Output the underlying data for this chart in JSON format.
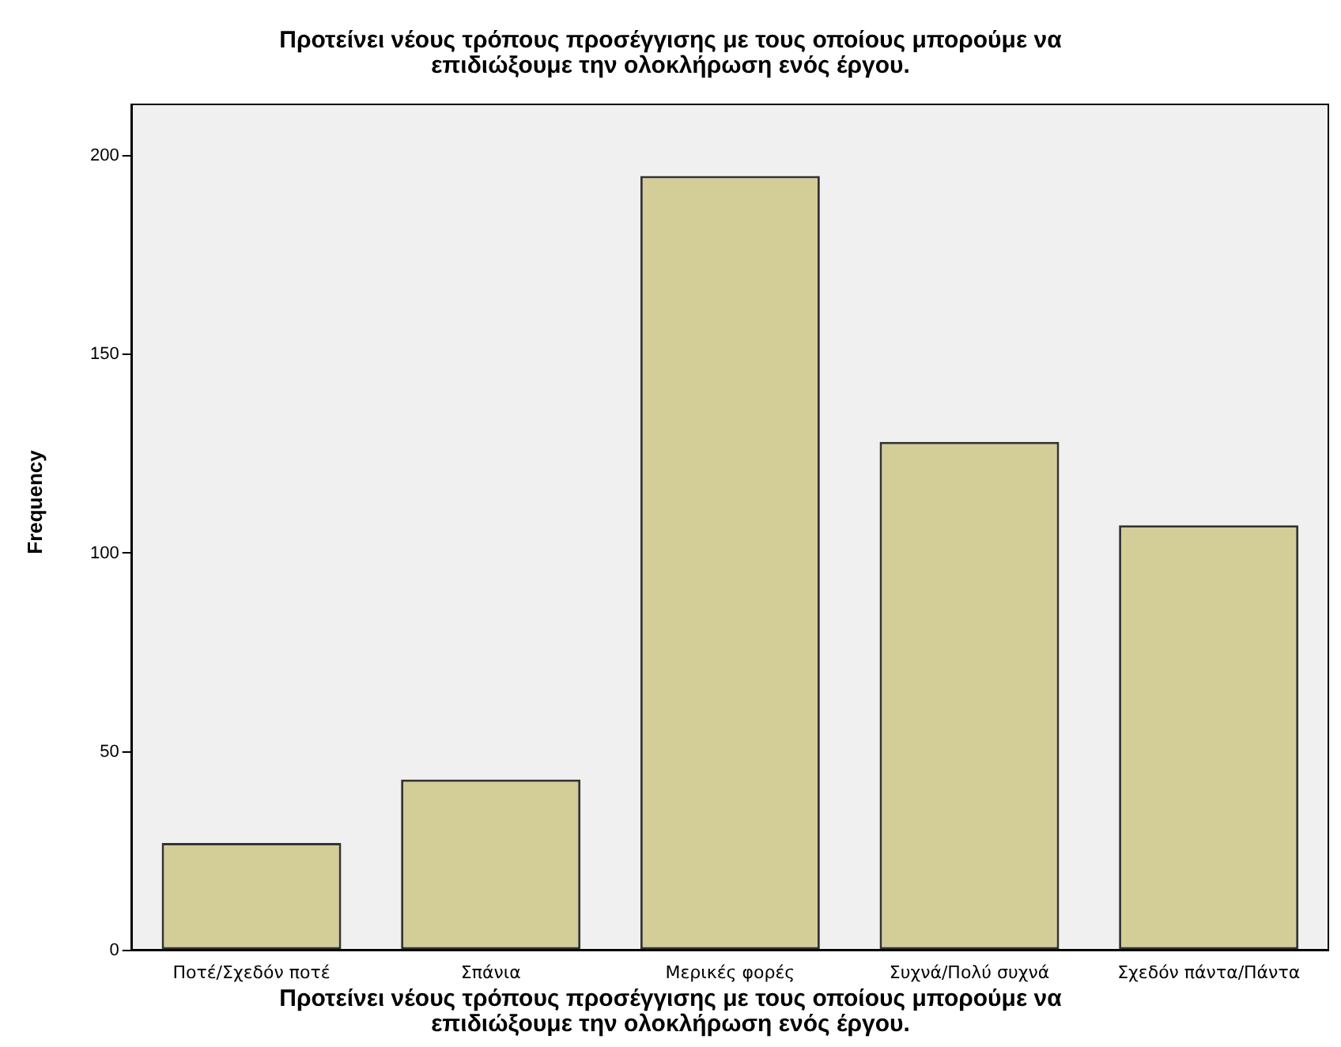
{
  "chart_data": {
    "type": "bar",
    "title": "Προτείνει νέους τρόπους προσέγγισης με τους οποίους μπορούμε να επιδιώξουμε την ολοκλήρωση ενός έργου.",
    "xlabel": "Προτείνει νέους τρόπους προσέγγισης με τους οποίους μπορούμε να επιδιώξουμε την ολοκλήρωση ενός έργου.",
    "ylabel": "Frequency",
    "categories": [
      "Ποτέ/Σχεδόν ποτέ",
      "Σπάνια",
      "Μερικές φορές",
      "Συχνά/Πολύ συχνά",
      "Σχεδόν πάντα/Πάντα"
    ],
    "values": [
      27,
      43,
      195,
      128,
      107
    ],
    "color": "#d3ce97",
    "ylim": [
      0,
      213
    ],
    "yticks": [
      0,
      50,
      100,
      150,
      200
    ],
    "grid": false,
    "legend": false
  }
}
